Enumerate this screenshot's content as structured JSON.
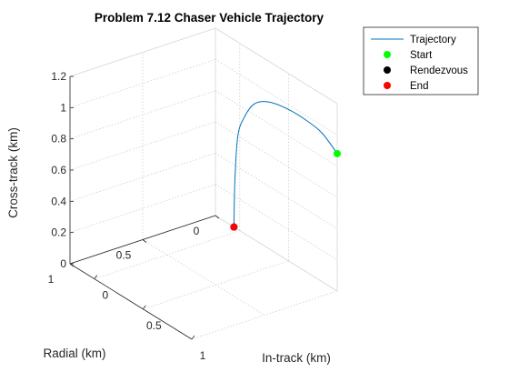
{
  "chart_data": {
    "type": "line3d",
    "title": "Problem 7.12 Chaser Vehicle Trajectory",
    "xlabel": "In-track (km)",
    "ylabel": "Radial (km)",
    "zlabel": "Cross-track (km)",
    "xlim": [
      -0.25,
      1
    ],
    "ylim": [
      0,
      1
    ],
    "zlim": [
      0,
      1.2
    ],
    "xticks": [
      0,
      0.5,
      1
    ],
    "yticks": [
      0,
      0.5,
      1
    ],
    "zticks": [
      0,
      0.2,
      0.4,
      0.6,
      0.8,
      1,
      1.2
    ],
    "xtick_labels": [
      "0",
      "0.5",
      "1"
    ],
    "ytick_labels": [
      "0",
      "0.5",
      "1"
    ],
    "ztick_labels": [
      "0",
      "0.2",
      "0.4",
      "0.6",
      "0.8",
      "1",
      "1.2"
    ],
    "grid": true,
    "legend_position": "top-right",
    "trajectory": {
      "name": "Trajectory",
      "color": "#0072BD",
      "x": [
        1,
        0.85,
        0.7,
        0.5,
        0.3,
        0.15,
        0.05,
        -0.02,
        -0.05,
        -0.06
      ],
      "y": [
        0,
        0,
        0,
        0,
        0,
        0,
        0,
        0,
        0,
        0
      ],
      "z": [
        0.88,
        0.95,
        0.97,
        0.97,
        0.94,
        0.87,
        0.75,
        0.6,
        0.3,
        0
      ]
    },
    "markers": [
      {
        "name": "Start",
        "color": "#00FF00",
        "x": 1,
        "y": 0,
        "z": 0.88
      },
      {
        "name": "Rendezvous",
        "color": "#000000",
        "x": -0.06,
        "y": 0,
        "z": 0
      },
      {
        "name": "End",
        "color": "#FF0000",
        "x": -0.06,
        "y": 0,
        "z": 0
      }
    ]
  }
}
